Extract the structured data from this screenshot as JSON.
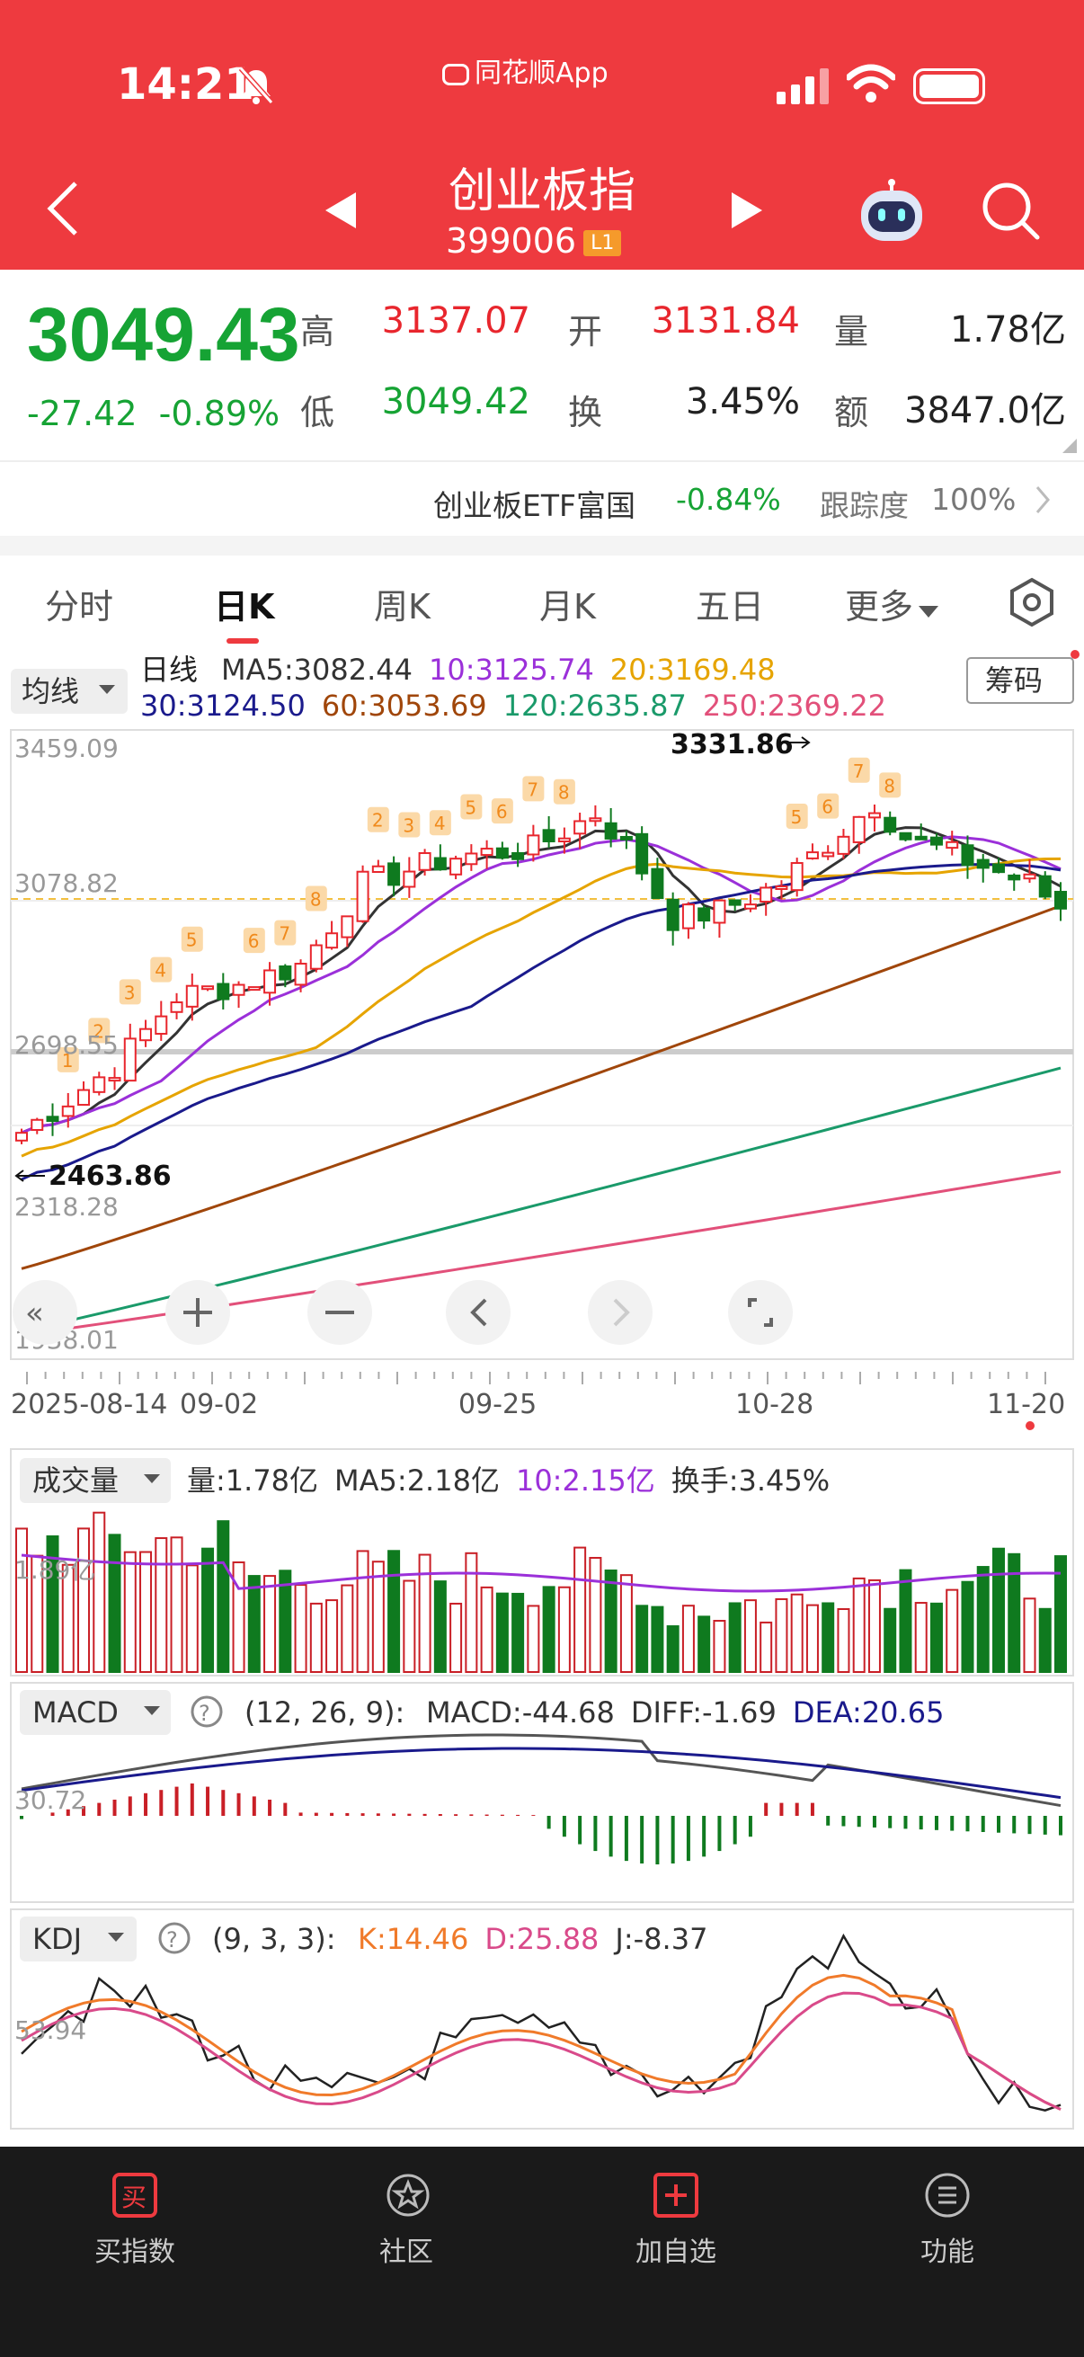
{
  "status": {
    "time": "14:21",
    "app_name": "同花顺App"
  },
  "header": {
    "title": "创业板指",
    "code": "399006",
    "level": "L1"
  },
  "quote": {
    "price": "3049.43",
    "change": "-27.42",
    "change_pct": "-0.89%",
    "high_label": "高",
    "high": "3137.07",
    "open_label": "开",
    "open": "3131.84",
    "volume_label": "量",
    "volume": "1.78亿",
    "low_label": "低",
    "low": "3049.42",
    "turnover_label": "换",
    "turnover": "3.45%",
    "amount_label": "额",
    "amount": "3847.0亿"
  },
  "etf": {
    "name": "创业板ETF富国",
    "change": "-0.84%",
    "tracking_label": "跟踪度",
    "tracking": "100%"
  },
  "tabs": [
    "分时",
    "日K",
    "周K",
    "月K",
    "五日",
    "更多"
  ],
  "active_tab": "日K",
  "kline": {
    "indicator_select": "均线",
    "period": "日线",
    "ma_row1": [
      {
        "text": "MA5:3082.44",
        "color": "#333333"
      },
      {
        "text": "10:3125.74",
        "color": "#9b30d9"
      },
      {
        "text": "20:3169.48",
        "color": "#e6a400"
      }
    ],
    "ma_row2": [
      {
        "text": "30:3124.50",
        "color": "#1a1a8c"
      },
      {
        "text": "60:3053.69",
        "color": "#a0460a"
      },
      {
        "text": "120:2635.87",
        "color": "#1a9a6a"
      },
      {
        "text": "250:2369.22",
        "color": "#e2507a"
      }
    ],
    "chip_button": "筹码",
    "y_labels": [
      "3459.09",
      "3078.82",
      "2698.55",
      "2318.28",
      "1938.01"
    ],
    "high_marker": "3331.86",
    "low_marker": "2463.86",
    "dates": [
      "2025-08-14",
      "09-02",
      "09-25",
      "10-28",
      "11-20"
    ]
  },
  "volume": {
    "select": "成交量",
    "items": [
      {
        "text": "量:1.78亿",
        "color": "#333333"
      },
      {
        "text": "MA5:2.18亿",
        "color": "#333333"
      },
      {
        "text": "10:2.15亿",
        "color": "#9b30d9"
      },
      {
        "text": "换手:3.45%",
        "color": "#333333"
      }
    ],
    "y_label": "1.89亿"
  },
  "macd": {
    "select": "MACD",
    "params": "(12, 26, 9):",
    "items": [
      {
        "text": "MACD:-44.68",
        "color": "#333333"
      },
      {
        "text": "DIFF:-1.69",
        "color": "#333333"
      },
      {
        "text": "DEA:20.65",
        "color": "#1a1a8c"
      }
    ],
    "y_label": "30.72"
  },
  "kdj": {
    "select": "KDJ",
    "params": "(9, 3, 3):",
    "items": [
      {
        "text": "K:14.46",
        "color": "#f07a2a"
      },
      {
        "text": "D:25.88",
        "color": "#d94a8a"
      },
      {
        "text": "J:-8.37",
        "color": "#333333"
      }
    ],
    "y_label": "53.94"
  },
  "bottom_nav": [
    {
      "label": "买指数",
      "icon": "buy-icon"
    },
    {
      "label": "社区",
      "icon": "community-icon"
    },
    {
      "label": "加自选",
      "icon": "add-watchlist-icon"
    },
    {
      "label": "功能",
      "icon": "menu-icon"
    }
  ]
}
